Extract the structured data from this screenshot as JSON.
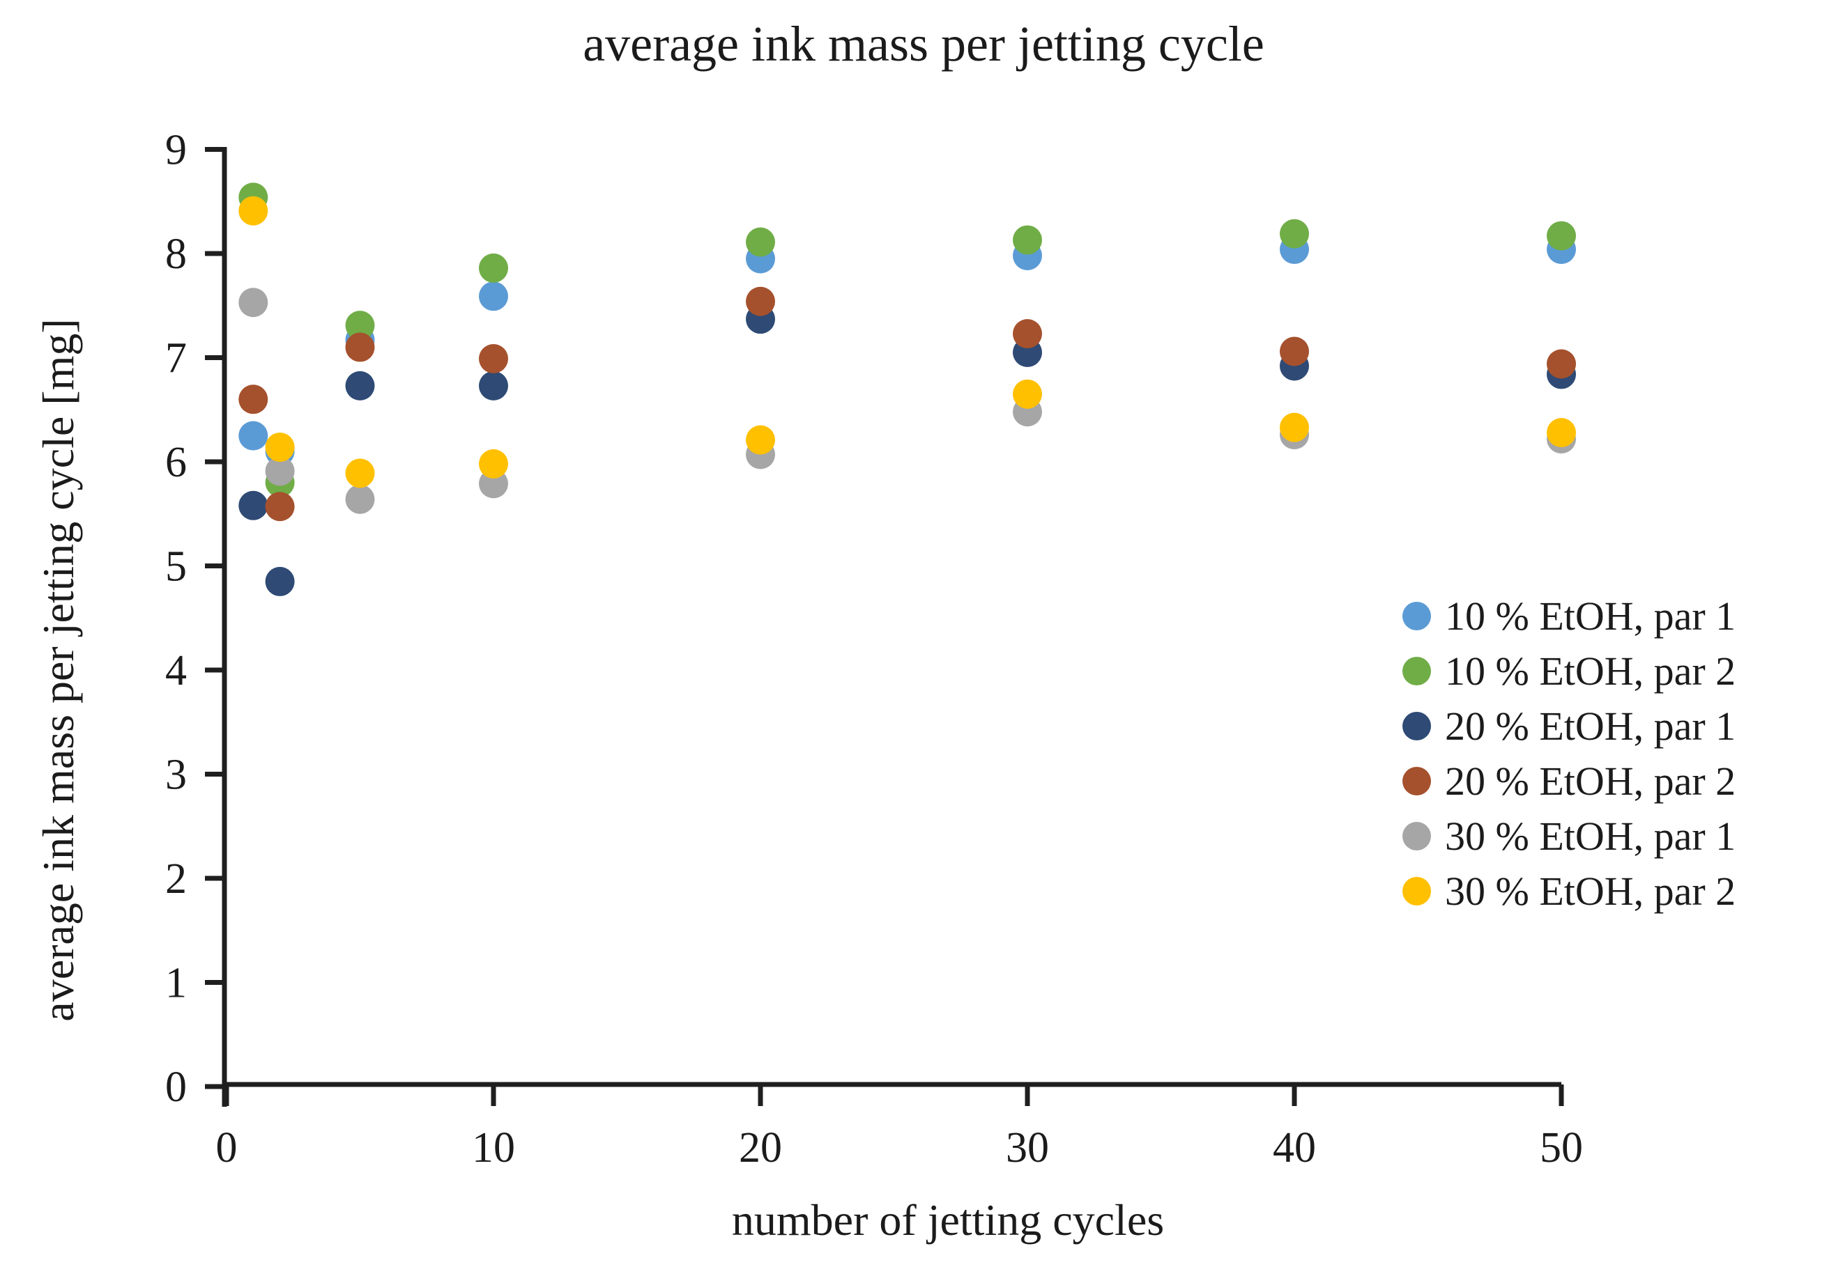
{
  "chart_data": {
    "type": "scatter",
    "title": "average ink mass per jetting cycle",
    "xlabel": "number of jetting cycles",
    "ylabel": "average ink mass per jetting cycle [mg]",
    "xlim": [
      0,
      50.3
    ],
    "ylim": [
      0,
      9
    ],
    "x_ticks": [
      0,
      10,
      20,
      30,
      40,
      50
    ],
    "y_ticks": [
      0,
      1,
      2,
      3,
      4,
      5,
      6,
      7,
      8,
      9
    ],
    "grid": false,
    "legend_position": "right",
    "marker": "circle",
    "x": [
      1,
      2,
      5,
      10,
      20,
      30,
      40,
      50
    ],
    "series": [
      {
        "name": "10 % EtOH, par 1",
        "color": "#5B9BD5",
        "values": [
          6.25,
          6.1,
          7.17,
          7.59,
          7.95,
          7.98,
          8.04,
          8.04
        ]
      },
      {
        "name": "10 % EtOH, par 2",
        "color": "#70AD47",
        "values": [
          8.54,
          5.8,
          7.31,
          7.86,
          8.11,
          8.13,
          8.19,
          8.17
        ]
      },
      {
        "name": "20 % EtOH, par 1",
        "color": "#2E4A75",
        "values": [
          5.58,
          4.85,
          6.73,
          6.73,
          7.37,
          7.05,
          6.92,
          6.84
        ]
      },
      {
        "name": "20 % EtOH, par 2",
        "color": "#A5512D",
        "values": [
          6.6,
          5.57,
          7.1,
          6.99,
          7.54,
          7.23,
          7.06,
          6.94
        ]
      },
      {
        "name": "30 % EtOH, par 1",
        "color": "#A6A6A6",
        "values": [
          7.53,
          5.91,
          5.64,
          5.79,
          6.07,
          6.48,
          6.26,
          6.22
        ]
      },
      {
        "name": "30 % EtOH, par 2",
        "color": "#FFC000",
        "values": [
          8.41,
          6.14,
          5.89,
          5.98,
          6.21,
          6.65,
          6.33,
          6.28
        ]
      }
    ],
    "axis_color": "#1f1f1f"
  }
}
